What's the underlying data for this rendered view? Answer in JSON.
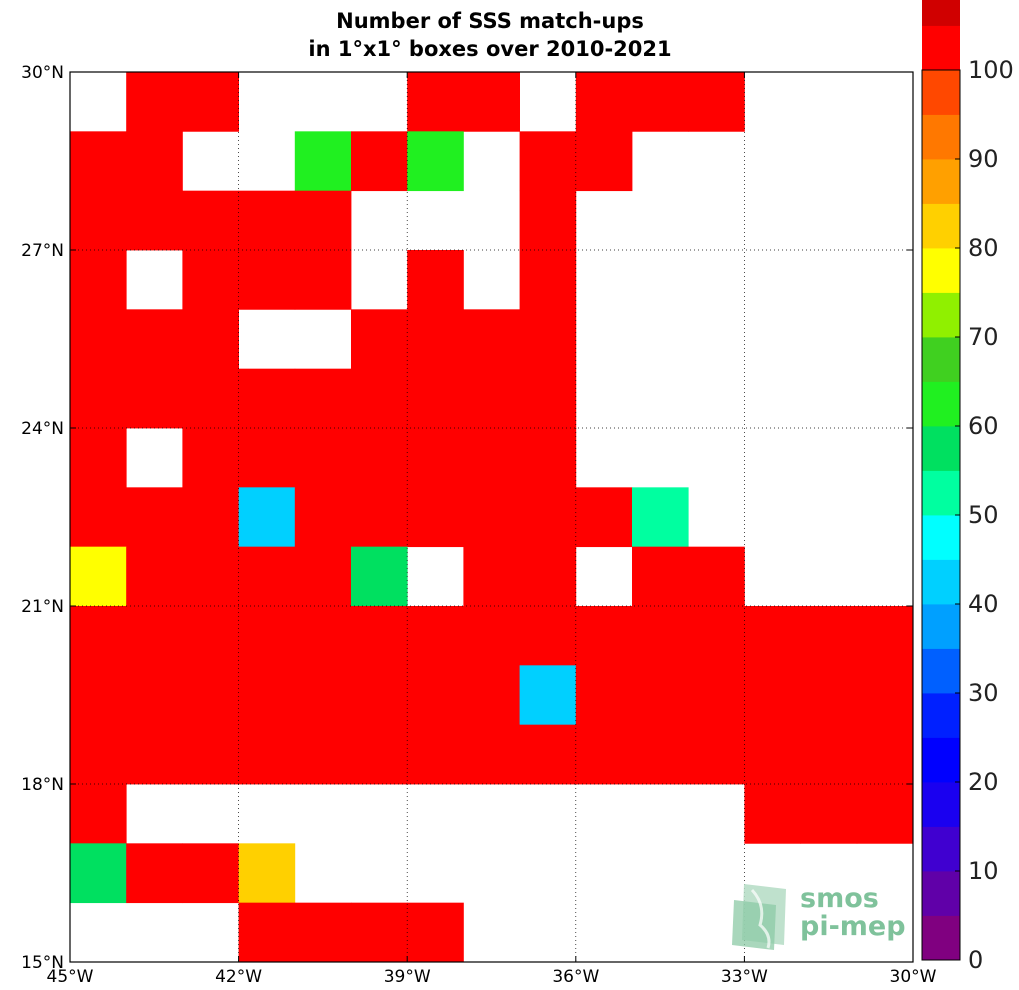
{
  "chart_data": {
    "type": "heatmap",
    "title": [
      "Number of SSS match-ups",
      "in 1°x1° boxes over 2010-2021"
    ],
    "x_ticks": [
      {
        "value": -45,
        "label": "45°W"
      },
      {
        "value": -42,
        "label": "42°W"
      },
      {
        "value": -39,
        "label": "39°W"
      },
      {
        "value": -36,
        "label": "36°W"
      },
      {
        "value": -33,
        "label": "33°W"
      },
      {
        "value": -30,
        "label": "30°W"
      }
    ],
    "y_ticks": [
      {
        "value": 15,
        "label": "15°N"
      },
      {
        "value": 18,
        "label": "18°N"
      },
      {
        "value": 21,
        "label": "21°N"
      },
      {
        "value": 24,
        "label": "24°N"
      },
      {
        "value": 27,
        "label": "27°N"
      },
      {
        "value": 30,
        "label": "30°N"
      }
    ],
    "xlim": [
      -45,
      -30
    ],
    "ylim": [
      15,
      30
    ],
    "grid": true,
    "cell_size_deg": 1,
    "row_lats_top": [
      30,
      29,
      28,
      27,
      26,
      25,
      24,
      23,
      22,
      21,
      20,
      19,
      18,
      17,
      16
    ],
    "col_lons_left": [
      -45,
      -44,
      -43,
      -42,
      -41,
      -40,
      -39,
      -38,
      -37,
      -36,
      -35,
      -34,
      -33,
      -32,
      -31
    ],
    "values": [
      [
        null,
        100,
        100,
        null,
        null,
        null,
        100,
        100,
        null,
        100,
        100,
        100,
        null,
        null,
        null
      ],
      [
        100,
        100,
        null,
        null,
        62,
        100,
        62,
        null,
        100,
        100,
        null,
        null,
        null,
        null,
        null
      ],
      [
        100,
        100,
        100,
        100,
        100,
        null,
        null,
        null,
        100,
        null,
        null,
        null,
        null,
        null,
        null
      ],
      [
        100,
        null,
        100,
        100,
        100,
        null,
        100,
        null,
        100,
        null,
        null,
        null,
        null,
        null,
        null
      ],
      [
        100,
        100,
        100,
        null,
        null,
        100,
        100,
        100,
        100,
        null,
        null,
        null,
        null,
        null,
        null
      ],
      [
        100,
        100,
        100,
        100,
        100,
        100,
        100,
        100,
        100,
        null,
        null,
        null,
        null,
        null,
        null
      ],
      [
        100,
        null,
        100,
        100,
        100,
        100,
        100,
        100,
        100,
        null,
        null,
        null,
        null,
        null,
        null
      ],
      [
        100,
        100,
        100,
        44,
        100,
        100,
        100,
        100,
        100,
        100,
        50,
        null,
        null,
        null,
        null
      ],
      [
        77,
        100,
        100,
        100,
        100,
        57,
        null,
        100,
        100,
        null,
        100,
        100,
        null,
        null,
        null
      ],
      [
        100,
        100,
        100,
        100,
        100,
        100,
        100,
        100,
        100,
        100,
        100,
        100,
        100,
        100,
        100
      ],
      [
        100,
        100,
        100,
        100,
        100,
        100,
        100,
        100,
        44,
        100,
        100,
        100,
        100,
        100,
        100
      ],
      [
        100,
        100,
        100,
        100,
        100,
        100,
        100,
        100,
        100,
        100,
        100,
        100,
        100,
        100,
        100
      ],
      [
        100,
        null,
        null,
        null,
        null,
        null,
        null,
        null,
        null,
        null,
        null,
        null,
        100,
        100,
        100
      ],
      [
        57,
        100,
        100,
        82,
        null,
        null,
        null,
        null,
        null,
        null,
        null,
        null,
        null,
        null,
        null
      ],
      [
        null,
        null,
        null,
        100,
        100,
        100,
        100,
        null,
        null,
        null,
        null,
        null,
        null,
        null,
        null
      ]
    ],
    "colorbar": {
      "range": [
        0,
        100
      ],
      "step": 5,
      "ticks": [
        0,
        10,
        20,
        30,
        40,
        50,
        60,
        70,
        80,
        90,
        100
      ],
      "colors": [
        "#800080",
        "#6000a8",
        "#4000d0",
        "#1a00f0",
        "#0000ff",
        "#0020ff",
        "#0060ff",
        "#00a0ff",
        "#00d0ff",
        "#00ffff",
        "#00ffa0",
        "#00e060",
        "#20f020",
        "#40d020",
        "#90f000",
        "#ffff00",
        "#ffd000",
        "#ffa000",
        "#ff7800",
        "#ff4800",
        "#ff0000",
        "#d00000",
        "#800000"
      ]
    }
  },
  "logo": {
    "line1": "smos",
    "line2": "pi-mep"
  },
  "colors": {
    "land_or_empty": "#ffffff",
    "max": "#800000"
  }
}
